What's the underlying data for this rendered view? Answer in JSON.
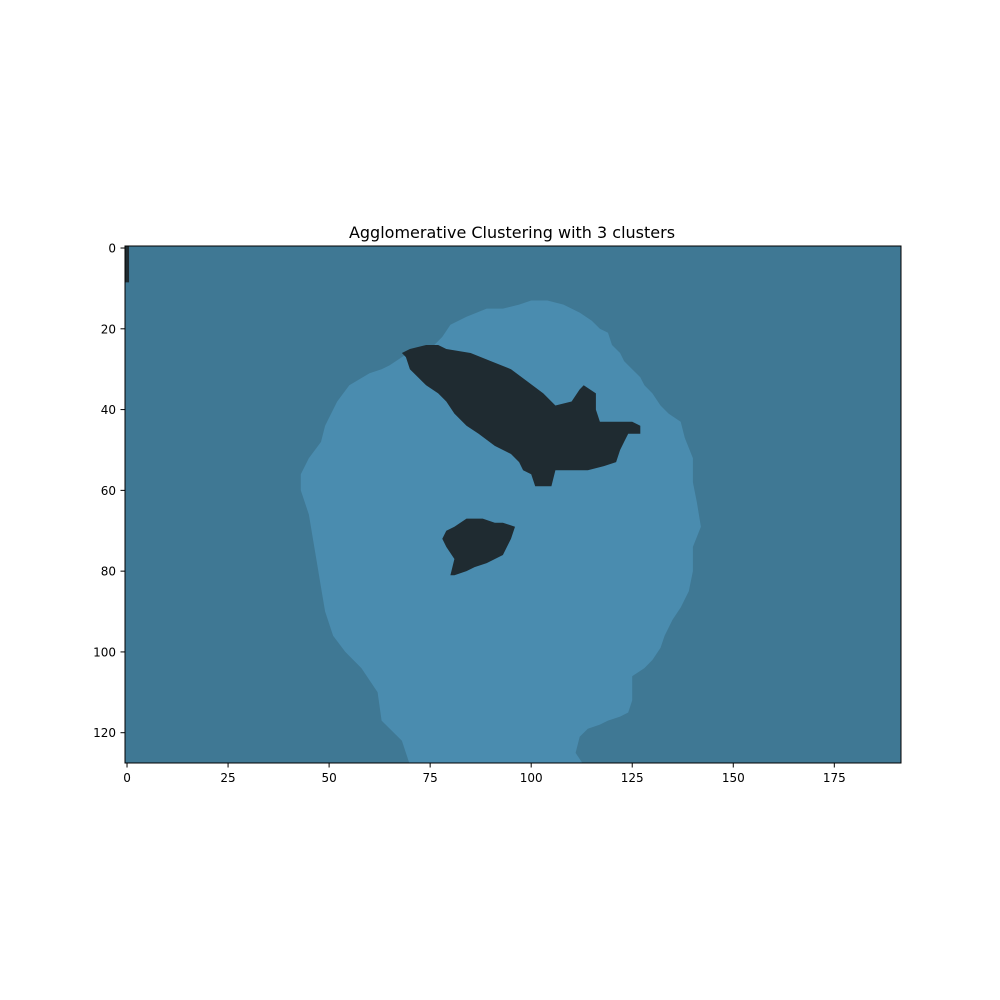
{
  "chart_data": {
    "type": "heatmap",
    "title": "Agglomerative Clustering with 3 clusters",
    "xlabel": "",
    "ylabel": "",
    "image_size": [
      192,
      128
    ],
    "xlim": [
      -0.5,
      191.5
    ],
    "ylim": [
      127.5,
      -0.5
    ],
    "x_ticks": [
      0,
      25,
      50,
      75,
      100,
      125,
      150,
      175
    ],
    "y_ticks": [
      0,
      20,
      40,
      60,
      80,
      100,
      120
    ],
    "x_tick_labels": [
      "0",
      "25",
      "50",
      "75",
      "100",
      "125",
      "150",
      "175"
    ],
    "y_tick_labels": [
      "0",
      "20",
      "40",
      "60",
      "80",
      "100",
      "120"
    ],
    "grid": false,
    "legend": "none",
    "clusters": [
      {
        "id": 0,
        "color": "#3f7894",
        "region": "background"
      },
      {
        "id": 1,
        "color": "#4a8caf",
        "region": "foreground",
        "boundary": [
          [
            70,
            128
          ],
          [
            68,
            122
          ],
          [
            63,
            117
          ],
          [
            62,
            110
          ],
          [
            58,
            104
          ],
          [
            54,
            100
          ],
          [
            51,
            96
          ],
          [
            49,
            90
          ],
          [
            48,
            84
          ],
          [
            47,
            78
          ],
          [
            46,
            72
          ],
          [
            45,
            66
          ],
          [
            43,
            60
          ],
          [
            43,
            56
          ],
          [
            45,
            52
          ],
          [
            48,
            48
          ],
          [
            49,
            44
          ],
          [
            52,
            38
          ],
          [
            55,
            34
          ],
          [
            60,
            31
          ],
          [
            63,
            30
          ],
          [
            65,
            29
          ],
          [
            68,
            27
          ],
          [
            71,
            25
          ],
          [
            76,
            24
          ],
          [
            78,
            22
          ],
          [
            80,
            19
          ],
          [
            84,
            17
          ],
          [
            89,
            15
          ],
          [
            93,
            15
          ],
          [
            97,
            14
          ],
          [
            100,
            13
          ],
          [
            104,
            13
          ],
          [
            108,
            14
          ],
          [
            112,
            16
          ],
          [
            115,
            18
          ],
          [
            117,
            20
          ],
          [
            119,
            21
          ],
          [
            120,
            24
          ],
          [
            122,
            26
          ],
          [
            123,
            28
          ],
          [
            125,
            30
          ],
          [
            127,
            32
          ],
          [
            128,
            34
          ],
          [
            130,
            36
          ],
          [
            132,
            39
          ],
          [
            134,
            41
          ],
          [
            137,
            43
          ],
          [
            138,
            47
          ],
          [
            140,
            52
          ],
          [
            140,
            58
          ],
          [
            141,
            63
          ],
          [
            142,
            69
          ],
          [
            140,
            74
          ],
          [
            140,
            80
          ],
          [
            139,
            85
          ],
          [
            137,
            89
          ],
          [
            135,
            92
          ],
          [
            133,
            96
          ],
          [
            132,
            99
          ],
          [
            130,
            102
          ],
          [
            128,
            104
          ],
          [
            125,
            106
          ],
          [
            125,
            109
          ],
          [
            125,
            112
          ],
          [
            124,
            115
          ],
          [
            122,
            116
          ],
          [
            119,
            117
          ],
          [
            117,
            118
          ],
          [
            114,
            119
          ],
          [
            112,
            121
          ],
          [
            111,
            125
          ],
          [
            113,
            128
          ]
        ]
      },
      {
        "id": 2,
        "color": "#1f2b31",
        "region": "blobs",
        "boundary": [
          [
            68,
            26
          ],
          [
            70,
            25
          ],
          [
            74,
            24
          ],
          [
            77,
            24
          ],
          [
            79,
            25
          ],
          [
            85,
            26
          ],
          [
            90,
            28
          ],
          [
            95,
            30
          ],
          [
            99,
            33
          ],
          [
            103,
            36
          ],
          [
            106,
            39
          ],
          [
            110,
            38
          ],
          [
            112,
            35
          ],
          [
            113,
            34
          ],
          [
            116,
            36
          ],
          [
            116,
            40
          ],
          [
            117,
            43
          ],
          [
            122,
            43
          ],
          [
            125,
            43
          ],
          [
            127,
            44
          ],
          [
            127,
            46
          ],
          [
            124,
            46
          ],
          [
            123,
            48
          ],
          [
            122,
            50
          ],
          [
            121,
            53
          ],
          [
            118,
            54
          ],
          [
            114,
            55
          ],
          [
            110,
            55
          ],
          [
            106,
            55
          ],
          [
            105,
            59
          ],
          [
            101,
            59
          ],
          [
            100,
            56
          ],
          [
            98,
            55
          ],
          [
            97,
            53
          ],
          [
            95,
            51
          ],
          [
            91,
            49
          ],
          [
            87,
            46
          ],
          [
            84,
            44
          ],
          [
            81,
            41
          ],
          [
            79,
            38
          ],
          [
            77,
            36
          ],
          [
            74,
            34
          ],
          [
            72,
            32
          ],
          [
            70,
            30
          ],
          [
            69,
            27
          ]
        ],
        "boundary_2": [
          [
            79,
            70
          ],
          [
            81,
            69
          ],
          [
            84,
            67
          ],
          [
            88,
            67
          ],
          [
            91,
            68
          ],
          [
            93,
            68
          ],
          [
            96,
            69
          ],
          [
            95,
            72
          ],
          [
            93,
            76
          ],
          [
            89,
            78
          ],
          [
            86,
            79
          ],
          [
            84,
            80
          ],
          [
            81,
            81
          ],
          [
            80,
            81
          ],
          [
            81,
            77
          ],
          [
            79,
            74
          ],
          [
            78,
            72
          ]
        ]
      }
    ],
    "corner_artifact": {
      "cluster": 2,
      "x": [
        0,
        1
      ],
      "y": [
        0,
        8
      ]
    }
  }
}
